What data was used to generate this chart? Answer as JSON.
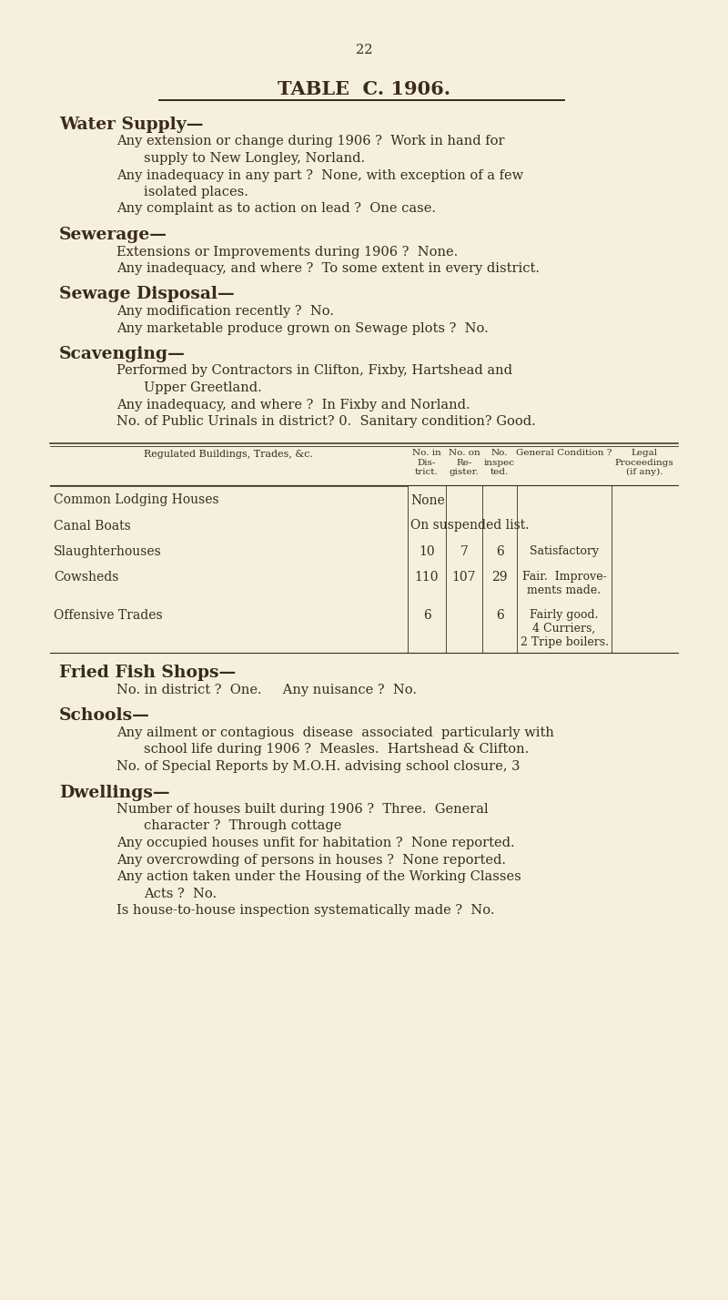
{
  "bg_color": "#f5f0de",
  "text_color": "#3a2a1a",
  "page_number": "22",
  "title": "TABLE  C. 1906.",
  "figsize": [
    8.0,
    14.28
  ],
  "dpi": 100
}
